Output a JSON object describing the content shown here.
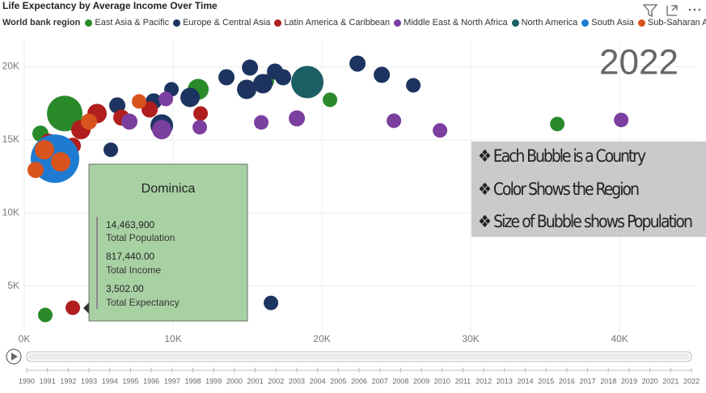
{
  "chart_data": {
    "type": "scatter",
    "title": "Life Expectancy by Average Income Over Time",
    "legend_title": "World bank region",
    "current_year": "2022",
    "xlim": [
      0,
      45100
    ],
    "ylim": [
      1900,
      21800
    ],
    "xticks": [
      {
        "value": 0,
        "label": "0K"
      },
      {
        "value": 10000,
        "label": "10K"
      },
      {
        "value": 20000,
        "label": "20K"
      },
      {
        "value": 30000,
        "label": "30K"
      },
      {
        "value": 40000,
        "label": "40K"
      }
    ],
    "yticks": [
      {
        "value": 5000,
        "label": "5K"
      },
      {
        "value": 10000,
        "label": "10K"
      },
      {
        "value": 15000,
        "label": "15K"
      },
      {
        "value": 20000,
        "label": "20K"
      }
    ],
    "grid": true,
    "series": [
      {
        "name": "East Asia & Pacific",
        "color": "#2a8a2a",
        "x": [
          1413,
          11685,
          20543,
          35815,
          16304,
          2717,
          1087,
          1630
        ],
        "values": [
          3030,
          18457,
          17741,
          16088,
          19008,
          16804,
          15427,
          14050
        ],
        "sizes": [
          9,
          13,
          9,
          9,
          9,
          22,
          10,
          10
        ]
      },
      {
        "name": "Europe & Central Asia",
        "color": "#1d3461",
        "x": [
          16576,
          22391,
          24022,
          26141,
          15163,
          16848,
          13587,
          11141,
          9239,
          6250,
          8696,
          9891,
          5815,
          14946,
          16033,
          17391
        ],
        "values": [
          3857,
          20220,
          19449,
          18733,
          19945,
          19669,
          19284,
          17906,
          15978,
          17355,
          17631,
          18457,
          14325,
          18457,
          18843,
          19284
        ],
        "sizes": [
          9,
          10,
          10,
          9,
          10,
          10,
          10,
          12,
          14,
          10,
          10,
          9,
          9,
          12,
          12,
          10
        ]
      },
      {
        "name": "Latin America & Caribbean",
        "color": "#b01e1e",
        "x": [
          3261,
          11848,
          3804,
          4891,
          6522,
          8424,
          1630,
          3261
        ],
        "values": [
          3526,
          16804,
          15703,
          16804,
          16529,
          17080,
          14876,
          14601
        ],
        "sizes": [
          9,
          9,
          12,
          12,
          10,
          10,
          10,
          10
        ]
      },
      {
        "name": "Middle East & North Africa",
        "color": "#7b3fa0",
        "x": [
          40109,
          27935,
          24837,
          18315,
          15924,
          11793,
          9511,
          9239,
          7065
        ],
        "values": [
          16364,
          15647,
          16309,
          16474,
          16198,
          15868,
          17796,
          15702,
          16254
        ],
        "sizes": [
          9,
          9,
          9,
          10,
          9,
          9,
          9,
          12,
          10
        ]
      },
      {
        "name": "North America",
        "color": "#1b5e63",
        "x": [
          19022
        ],
        "values": [
          18953
        ],
        "sizes": [
          20
        ]
      },
      {
        "name": "South Asia",
        "color": "#1f7bd1",
        "x": [
          2065
        ],
        "values": [
          13719
        ],
        "sizes": [
          30
        ]
      },
      {
        "name": "Sub-Saharan Africa",
        "color": "#d9531e",
        "x": [
          7717,
          761,
          1359,
          4348,
          2446
        ],
        "values": [
          17631,
          12948,
          14325,
          16254,
          13499
        ],
        "sizes": [
          9,
          10,
          12,
          10,
          12
        ]
      }
    ],
    "tooltip": {
      "title": "Dominica",
      "rows": [
        {
          "value": "14,463,900",
          "label": "Total Population"
        },
        {
          "value": "817,440.00",
          "label": "Total Income"
        },
        {
          "value": "3,502.00",
          "label": "Total Expectancy"
        }
      ]
    },
    "info": [
      "❖ Each Bubble is a Country",
      "❖ Color Shows the Region",
      "❖ Size of Bubble shows Population"
    ],
    "play_years": [
      "1990",
      "1991",
      "1992",
      "1993",
      "1994",
      "1995",
      "1996",
      "1997",
      "1998",
      "1999",
      "2000",
      "2001",
      "2002",
      "2003",
      "2004",
      "2005",
      "2006",
      "2007",
      "2008",
      "2009",
      "2010",
      "2011",
      "2012",
      "2013",
      "2014",
      "2015",
      "2016",
      "2017",
      "2018",
      "2019",
      "2020",
      "2021",
      "2022"
    ]
  }
}
